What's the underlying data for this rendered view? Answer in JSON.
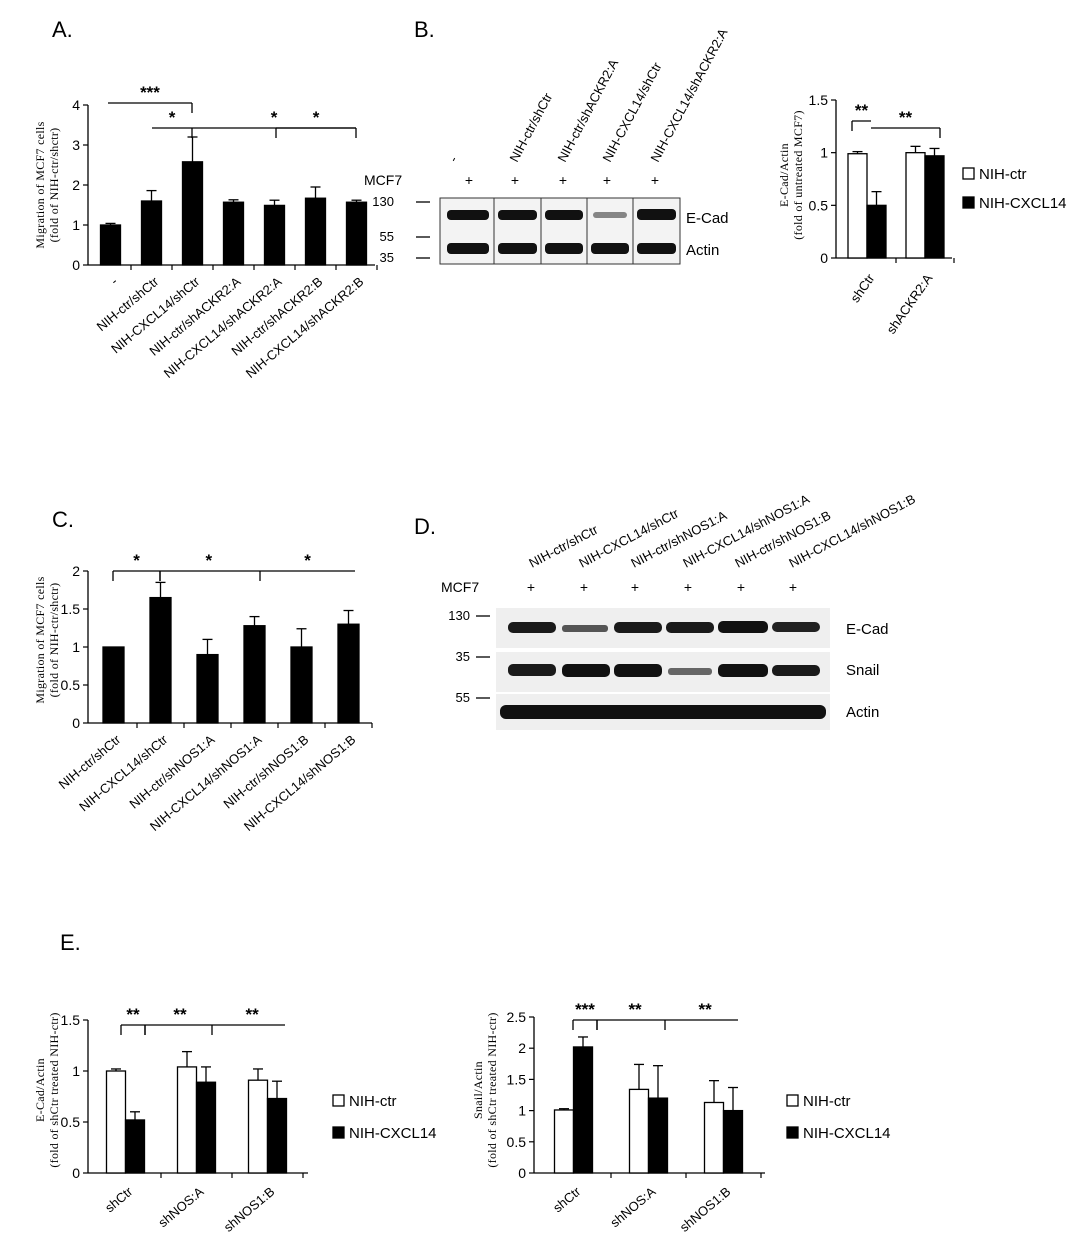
{
  "panels": {
    "A": {
      "label": "A."
    },
    "B": {
      "label": "B.",
      "blot": {
        "lanes": [
          "-",
          "NIH-ctr/shCtr",
          "NIH-ctr/shACKR2:A",
          "NIH-CXCL14/shCtr",
          "NIH-CXCL14/shACKR2:A"
        ],
        "mcf7_label": "MCF7",
        "mcf7_marks": [
          "+",
          "+",
          "+",
          "+",
          "+"
        ],
        "markers": [
          "130",
          "55",
          "35"
        ],
        "bands": [
          "E-Cad",
          "Actin"
        ]
      }
    },
    "C": {
      "label": "C."
    },
    "D": {
      "label": "D.",
      "blot": {
        "lanes": [
          "NIH-ctr/shCtr",
          "NIH-CXCL14/shCtr",
          "NIH-ctr/shNOS1:A",
          "NIH-CXCL14/shNOS1:A",
          "NIH-ctr/shNOS1:B",
          "NIH-CXCL14/shNOS1:B"
        ],
        "mcf7_label": "MCF7",
        "mcf7_marks": [
          "+",
          "+",
          "+",
          "+",
          "+",
          "+"
        ],
        "markers": [
          "130",
          "35",
          "55"
        ],
        "bands": [
          "E-Cad",
          "Snail",
          "Actin"
        ]
      }
    },
    "E": {
      "label": "E."
    }
  },
  "colors": {
    "filled": "#000000",
    "open": "#ffffff",
    "stroke": "#000000"
  },
  "chart_data": [
    {
      "id": "A",
      "type": "bar",
      "categories": [
        "-",
        "NIH-ctr/shCtr",
        "NIH-CXCL14/shCtr",
        "NIH-ctr/shACKR2:A",
        "NIH-CXCL14/shACKR2:A",
        "NIH-ctr/shACKR2:B",
        "NIH-CXCL14/shACKR2:B"
      ],
      "series": [
        {
          "values": [
            1.0,
            1.6,
            2.58,
            1.57,
            1.49,
            1.67,
            1.57
          ],
          "errors": [
            0.04,
            0.26,
            0.62,
            0.06,
            0.13,
            0.28,
            0.05
          ]
        }
      ],
      "ylabel_lines": [
        "Migration of MCF7 cells",
        "(fold of NIH-ctr/shctr)"
      ],
      "ylim": [
        0,
        4
      ],
      "yticks": [
        "0",
        "1",
        "2",
        "3",
        "4"
      ],
      "annotations": [
        "***",
        "*",
        "*",
        "*"
      ]
    },
    {
      "id": "B",
      "type": "bar",
      "categories": [
        "shCtr",
        "shACKR2:A"
      ],
      "series": [
        {
          "name": "NIH-ctr",
          "values": [
            0.99,
            1.0
          ],
          "errors": [
            0.02,
            0.06
          ]
        },
        {
          "name": "NIH-CXCL14",
          "values": [
            0.5,
            0.97
          ],
          "errors": [
            0.13,
            0.07
          ]
        }
      ],
      "ylabel_lines": [
        "E-Cad/Actin",
        "(fold of untreated MCF7)"
      ],
      "ylim": [
        0,
        1.5
      ],
      "yticks": [
        "0",
        "0.5",
        "1",
        "1.5"
      ],
      "legend": [
        "NIH-ctr",
        "NIH-CXCL14"
      ],
      "annotations": [
        "**",
        "**"
      ]
    },
    {
      "id": "C",
      "type": "bar",
      "categories": [
        "NIH-ctr/shCtr",
        "NIH-CXCL14/shCtr",
        "NIH-ctr/shNOS1:A",
        "NIH-CXCL14/shNOS1:A",
        "NIH-ctr/shNOS1:B",
        "NIH-CXCL14/shNOS1:B"
      ],
      "series": [
        {
          "values": [
            1.0,
            1.65,
            0.9,
            1.28,
            1.0,
            1.3
          ],
          "errors": [
            0.0,
            0.2,
            0.2,
            0.12,
            0.24,
            0.18
          ]
        }
      ],
      "ylabel_lines": [
        "Migration of MCF7 cells",
        "(fold of NIH-ctr/shctr)"
      ],
      "ylim": [
        0,
        2
      ],
      "yticks": [
        "0",
        "0.5",
        "1",
        "1.5",
        "2"
      ],
      "annotations": [
        "*",
        "*",
        "*"
      ]
    },
    {
      "id": "E1",
      "type": "bar",
      "categories": [
        "shCtr",
        "shNOS:A",
        "shNOS1:B"
      ],
      "series": [
        {
          "name": "NIH-ctr",
          "values": [
            1.0,
            1.04,
            0.91
          ],
          "errors": [
            0.02,
            0.15,
            0.11
          ]
        },
        {
          "name": "NIH-CXCL14",
          "values": [
            0.52,
            0.89,
            0.73
          ],
          "errors": [
            0.08,
            0.15,
            0.17
          ]
        }
      ],
      "ylabel_lines": [
        "E-Cad/Actin",
        "(fold of shCtr treated NIH-ctr)"
      ],
      "ylim": [
        0,
        1.5
      ],
      "yticks": [
        "0",
        "0.5",
        "1",
        "1.5"
      ],
      "legend": [
        "NIH-ctr",
        "NIH-CXCL14"
      ],
      "annotations": [
        "**",
        "**",
        "**"
      ]
    },
    {
      "id": "E2",
      "type": "bar",
      "categories": [
        "shCtr",
        "shNOS:A",
        "shNOS1:B"
      ],
      "series": [
        {
          "name": "NIH-ctr",
          "values": [
            1.01,
            1.34,
            1.13
          ],
          "errors": [
            0.02,
            0.4,
            0.35
          ]
        },
        {
          "name": "NIH-CXCL14",
          "values": [
            2.02,
            1.2,
            1.0
          ],
          "errors": [
            0.16,
            0.52,
            0.37
          ]
        }
      ],
      "ylabel_lines": [
        "Snail/Actin",
        "(fold of shCtr treated NIH-ctr)"
      ],
      "ylim": [
        0,
        2.5
      ],
      "yticks": [
        "0",
        "0.5",
        "1",
        "1.5",
        "2",
        "2.5"
      ],
      "legend": [
        "NIH-ctr",
        "NIH-CXCL14"
      ],
      "annotations": [
        "***",
        "**",
        "**"
      ]
    }
  ]
}
